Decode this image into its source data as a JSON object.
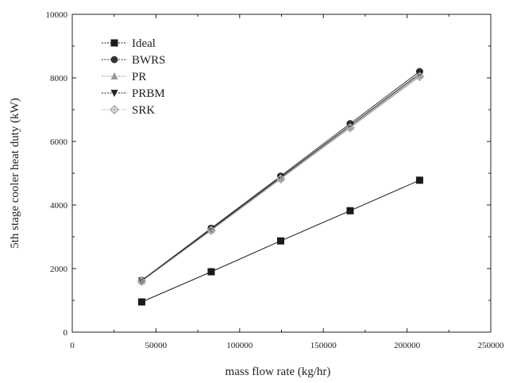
{
  "chart_data": {
    "type": "line",
    "xlabel": "mass flow rate (kg/hr)",
    "ylabel": "5th stage cooler heat duty (kW)",
    "xlim": [
      0,
      250000
    ],
    "ylim": [
      0,
      10000
    ],
    "x_ticks": [
      "0",
      "50000",
      "100000",
      "150000",
      "200000",
      "250000"
    ],
    "y_ticks": [
      "0",
      "2000",
      "4000",
      "6000",
      "8000",
      "10000"
    ],
    "legend_position": "top-left",
    "grid": false,
    "series": [
      {
        "name": "Ideal",
        "marker": "square",
        "color": "#1a1a1a",
        "x": [
          41500,
          83000,
          124500,
          166000,
          207500
        ],
        "y": [
          950,
          1900,
          2870,
          3820,
          4780
        ]
      },
      {
        "name": "BWRS",
        "marker": "circle",
        "color": "#333333",
        "x": [
          41500,
          83000,
          124500,
          166000,
          207500
        ],
        "y": [
          1630,
          3270,
          4910,
          6560,
          8200
        ]
      },
      {
        "name": "PR",
        "marker": "triangle-up",
        "color": "#999999",
        "x": [
          41500,
          83000,
          124500,
          166000,
          207500
        ],
        "y": [
          1610,
          3220,
          4840,
          6460,
          8080
        ]
      },
      {
        "name": "PRBM",
        "marker": "triangle-down",
        "color": "#222222",
        "x": [
          41500,
          83000,
          124500,
          166000,
          207500
        ],
        "y": [
          1620,
          3240,
          4870,
          6500,
          8130
        ]
      },
      {
        "name": "SRK",
        "marker": "diamond-plus",
        "color": "#aaaaaa",
        "x": [
          41500,
          83000,
          124500,
          166000,
          207500
        ],
        "y": [
          1600,
          3200,
          4820,
          6430,
          8040
        ]
      }
    ]
  }
}
